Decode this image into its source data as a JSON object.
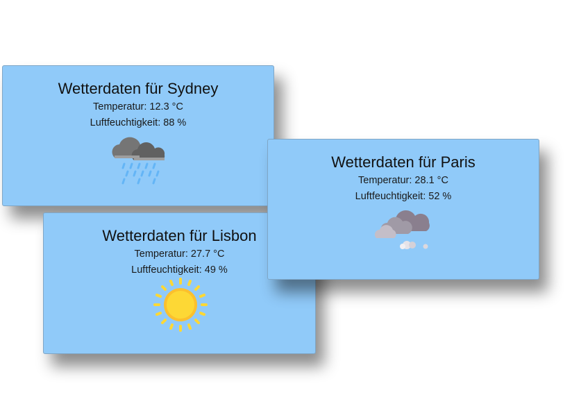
{
  "cards": [
    {
      "id": "sydney",
      "title": "Wetterdaten für Sydney",
      "temperature": "Temperatur: 12.3 °C",
      "humidity": "Luftfeuchtigkeit: 88 %",
      "icon": "rain-cloud-icon"
    },
    {
      "id": "lisbon",
      "title": "Wetterdaten für Lisbon",
      "temperature": "Temperatur: 27.7 °C",
      "humidity": "Luftfeuchtigkeit: 49 %",
      "icon": "sun-icon"
    },
    {
      "id": "paris",
      "title": "Wetterdaten für Paris",
      "temperature": "Temperatur: 28.1 °C",
      "humidity": "Luftfeuchtigkeit: 52 %",
      "icon": "fog-cloud-icon"
    }
  ],
  "colors": {
    "card_background": "#90caf9",
    "sun": "#fdd835",
    "rain": "#64b5f6",
    "cloud_dark": "#757575"
  }
}
